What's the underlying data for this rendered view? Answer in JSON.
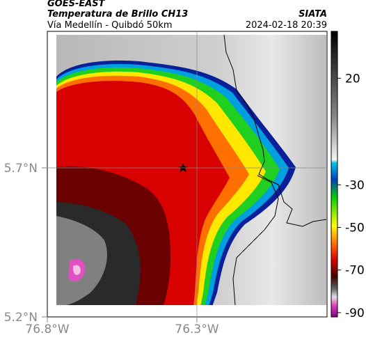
{
  "header": {
    "title": "GOES-EAST",
    "subtitle": "Temperatura de Brillo CH13",
    "location": "Vía Medellín - Quibdó 50km",
    "source": "SIATA",
    "datetime": "2024-02-18 20:39"
  },
  "map": {
    "latlim": [
      5.2,
      6.158
    ],
    "lonlim": [
      -76.8,
      -75.865
    ],
    "lat_ticks": [
      {
        "value": 5.7,
        "label": "5.7°N"
      },
      {
        "value": 5.2,
        "label": "5.2°N"
      }
    ],
    "lon_ticks": [
      {
        "value": -76.8,
        "label": "76.8°W"
      },
      {
        "value": -76.3,
        "label": "76.3°W"
      }
    ],
    "grid": true
  },
  "colorbar": {
    "clim": [
      -92,
      42
    ],
    "ticks": [
      20,
      -30,
      -50,
      -70,
      -90
    ]
  }
}
